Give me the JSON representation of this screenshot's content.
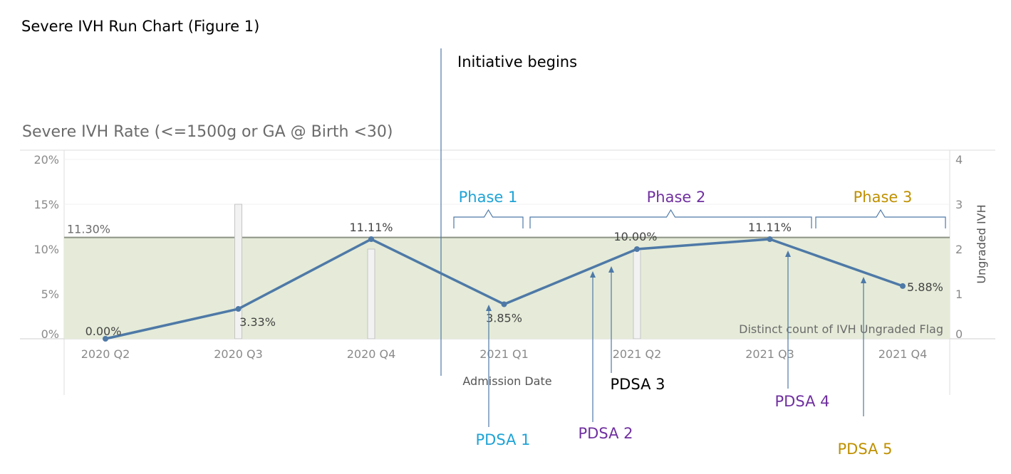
{
  "figure_title": "Severe IVH Run Chart (Figure 1)",
  "colors": {
    "line": "#4e79a7",
    "band": "#e5ebd8",
    "ref_line": "#8d9484",
    "bar_fill": "#f2f2f2",
    "bar_stroke": "#c4c4c4",
    "initiative_line": "#4e79a7",
    "phase1": "#1fa3d6",
    "phase2": "#7030a0",
    "phase3": "#bf9000",
    "pdsa3": "#000000"
  },
  "chart_data": {
    "type": "line",
    "title": "Severe IVH Rate (<=1500g or GA @ Birth <30)",
    "xlabel": "Admission Date",
    "ylabel": "",
    "y2label": "Ungraded IVH",
    "categories": [
      "2020 Q2",
      "2020 Q3",
      "2020 Q4",
      "2021 Q1",
      "2021 Q2",
      "2021 Q3",
      "2021 Q4"
    ],
    "ylim": [
      0,
      20
    ],
    "y_ticks": [
      "0%",
      "5%",
      "10%",
      "15%",
      "20%"
    ],
    "y2lim": [
      0,
      4
    ],
    "y2_ticks": [
      "0",
      "1",
      "2",
      "3",
      "4"
    ],
    "series": [
      {
        "values": [
          0.0,
          3.33,
          11.11,
          3.85,
          10.0,
          11.11,
          5.88
        ],
        "labels": [
          "0.00%",
          "3.33%",
          "11.11%",
          "3.85%",
          "10.00%",
          "11.11%",
          "5.88%"
        ]
      }
    ],
    "bars_secondary": {
      "name": "Distinct count of IVH Ungraded Flag",
      "values": [
        0,
        3,
        2,
        0,
        2,
        0,
        0
      ]
    },
    "reference_line": {
      "value": 11.3,
      "label": "11.30%"
    },
    "initiative_label": "Initiative begins",
    "phases": [
      {
        "label": "Phase 1",
        "color_key": "phase1"
      },
      {
        "label": "Phase 2",
        "color_key": "phase2"
      },
      {
        "label": "Phase 3",
        "color_key": "phase3"
      }
    ],
    "pdsa": [
      {
        "label": "PDSA 1",
        "color_key": "phase1"
      },
      {
        "label": "PDSA 2",
        "color_key": "phase2"
      },
      {
        "label": "PDSA 3",
        "color_key": "pdsa3"
      },
      {
        "label": "PDSA 4",
        "color_key": "phase2"
      },
      {
        "label": "PDSA 5",
        "color_key": "phase3"
      }
    ],
    "grid": true,
    "legend": "none"
  }
}
